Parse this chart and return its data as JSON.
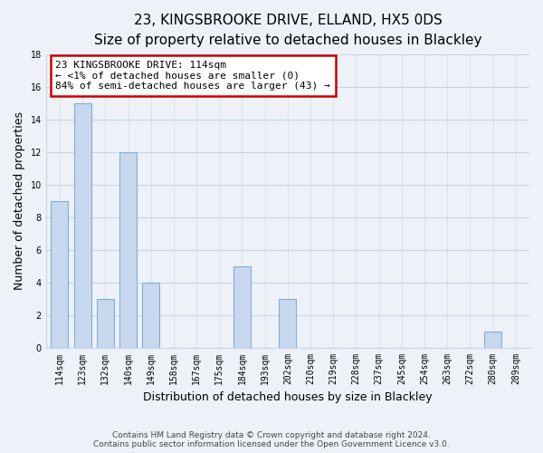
{
  "title": "23, KINGSBROOKE DRIVE, ELLAND, HX5 0DS",
  "subtitle": "Size of property relative to detached houses in Blackley",
  "xlabel": "Distribution of detached houses by size in Blackley",
  "ylabel": "Number of detached properties",
  "categories": [
    "114sqm",
    "123sqm",
    "132sqm",
    "140sqm",
    "149sqm",
    "158sqm",
    "167sqm",
    "175sqm",
    "184sqm",
    "193sqm",
    "202sqm",
    "210sqm",
    "219sqm",
    "228sqm",
    "237sqm",
    "245sqm",
    "254sqm",
    "263sqm",
    "272sqm",
    "280sqm",
    "289sqm"
  ],
  "values": [
    9,
    15,
    3,
    12,
    4,
    0,
    0,
    0,
    5,
    0,
    3,
    0,
    0,
    0,
    0,
    0,
    0,
    0,
    0,
    1,
    0
  ],
  "bar_color": "#c8d8ee",
  "bar_edge_color": "#7fafd4",
  "ylim": [
    0,
    18
  ],
  "yticks": [
    0,
    2,
    4,
    6,
    8,
    10,
    12,
    14,
    16,
    18
  ],
  "annotation_box_text": "23 KINGSBROOKE DRIVE: 114sqm\n← <1% of detached houses are smaller (0)\n84% of semi-detached houses are larger (43) →",
  "footer_line1": "Contains HM Land Registry data © Crown copyright and database right 2024.",
  "footer_line2": "Contains public sector information licensed under the Open Government Licence v3.0.",
  "background_color": "#eef2f8",
  "plot_bg_color": "#eef2f8",
  "grid_color": "#c8d4e8",
  "box_edge_color": "#cc0000",
  "title_fontsize": 11,
  "subtitle_fontsize": 10,
  "axis_label_fontsize": 9,
  "tick_fontsize": 7,
  "footer_fontsize": 6.5,
  "ann_fontsize": 8
}
